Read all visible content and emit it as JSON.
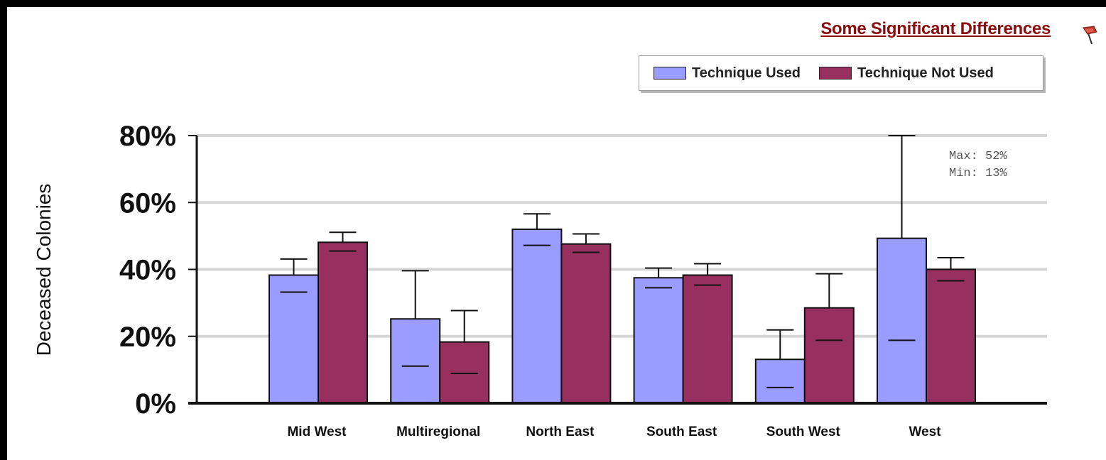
{
  "header": {
    "link_label": "Some Significant Differences"
  },
  "icons": {
    "flag": "flag-icon"
  },
  "stats": {
    "max_label": "Max: 52%",
    "min_label": "Min: 13%"
  },
  "chart_data": {
    "type": "bar",
    "ylabel": "Deceased Colonies",
    "ylim": [
      0,
      80
    ],
    "yticks": [
      "0%",
      "20%",
      "40%",
      "60%",
      "80%"
    ],
    "ytick_values": [
      0,
      20,
      40,
      60,
      80
    ],
    "grid": true,
    "legend_position": "top-right",
    "categories": [
      "Mid West",
      "Multiregional",
      "North East",
      "South East",
      "South West",
      "West"
    ],
    "series": [
      {
        "name": "Technique Used",
        "color": "#9a9cff",
        "values": [
          38.3,
          25.2,
          52.0,
          37.5,
          13.1,
          49.3
        ],
        "upper": [
          43.1,
          39.6,
          56.6,
          40.4,
          21.9,
          80.0
        ],
        "lower": [
          33.2,
          11.1,
          47.2,
          34.5,
          4.7,
          18.8
        ]
      },
      {
        "name": "Technique Not Used",
        "color": "#98305f",
        "values": [
          48.1,
          18.3,
          47.6,
          38.3,
          28.5,
          40.0
        ],
        "upper": [
          51.1,
          27.7,
          50.6,
          41.7,
          38.7,
          43.5
        ],
        "lower": [
          45.5,
          8.9,
          45.1,
          35.3,
          18.8,
          36.6
        ]
      }
    ]
  }
}
